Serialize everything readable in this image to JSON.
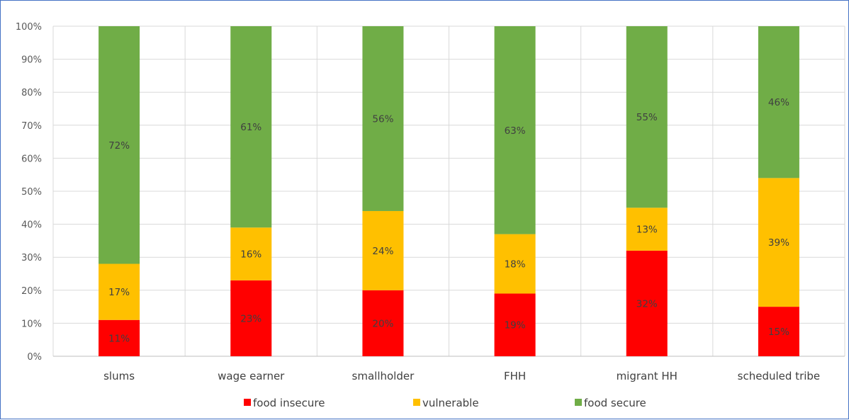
{
  "chart_data": {
    "type": "bar",
    "stacked": true,
    "percent_stacked": true,
    "categories": [
      "slums",
      "wage earner",
      "smallholder",
      "FHH",
      "migrant HH",
      "scheduled tribe"
    ],
    "series": [
      {
        "name": "food insecure",
        "color": "#ff0000",
        "values": [
          11,
          23,
          20,
          19,
          32,
          15
        ],
        "labels": [
          "11%",
          "23%",
          "20%",
          "19%",
          "32%",
          "15%"
        ]
      },
      {
        "name": "vulnerable",
        "color": "#ffc000",
        "values": [
          17,
          16,
          24,
          18,
          13,
          39
        ],
        "labels": [
          "17%",
          "16%",
          "24%",
          "18%",
          "13%",
          "39%"
        ]
      },
      {
        "name": "food secure",
        "color": "#70ad47",
        "values": [
          72,
          61,
          56,
          63,
          55,
          46
        ],
        "labels": [
          "72%",
          "61%",
          "56%",
          "63%",
          "55%",
          "46%"
        ]
      }
    ],
    "yticks": [
      "0%",
      "10%",
      "20%",
      "30%",
      "40%",
      "50%",
      "60%",
      "70%",
      "80%",
      "90%",
      "100%"
    ],
    "ylim": [
      0,
      100
    ],
    "grid": true,
    "legend_position": "bottom",
    "title": "",
    "xlabel": "",
    "ylabel": ""
  }
}
